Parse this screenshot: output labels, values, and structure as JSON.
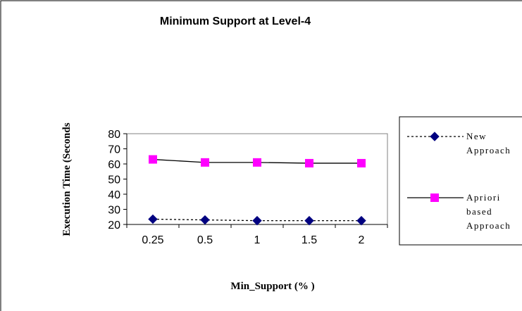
{
  "chart_data": {
    "type": "line",
    "title": "Minimum Support at Level-4",
    "xlabel": "Min_Support (% )",
    "ylabel": "Execution Time (Seconds",
    "categories": [
      "0.25",
      "0.5",
      "1",
      "1.5",
      "2"
    ],
    "ylim": [
      20,
      80
    ],
    "yticks": [
      20,
      30,
      40,
      50,
      60,
      70,
      80
    ],
    "grid": false,
    "legend_position": "right",
    "series": [
      {
        "name": "New Approach",
        "legend_lines": [
          "New",
          "Approach"
        ],
        "values": [
          23.5,
          23,
          22.5,
          22.5,
          22.5
        ],
        "color": "#000080",
        "marker": "diamond",
        "line_style": "dotted"
      },
      {
        "name": "Apriori based Approach",
        "legend_lines": [
          "Apriori",
          "based",
          "Approach"
        ],
        "values": [
          63,
          61,
          61,
          60.5,
          60.5
        ],
        "color": "#ff00ff",
        "marker": "square",
        "line_style": "solid"
      }
    ]
  }
}
